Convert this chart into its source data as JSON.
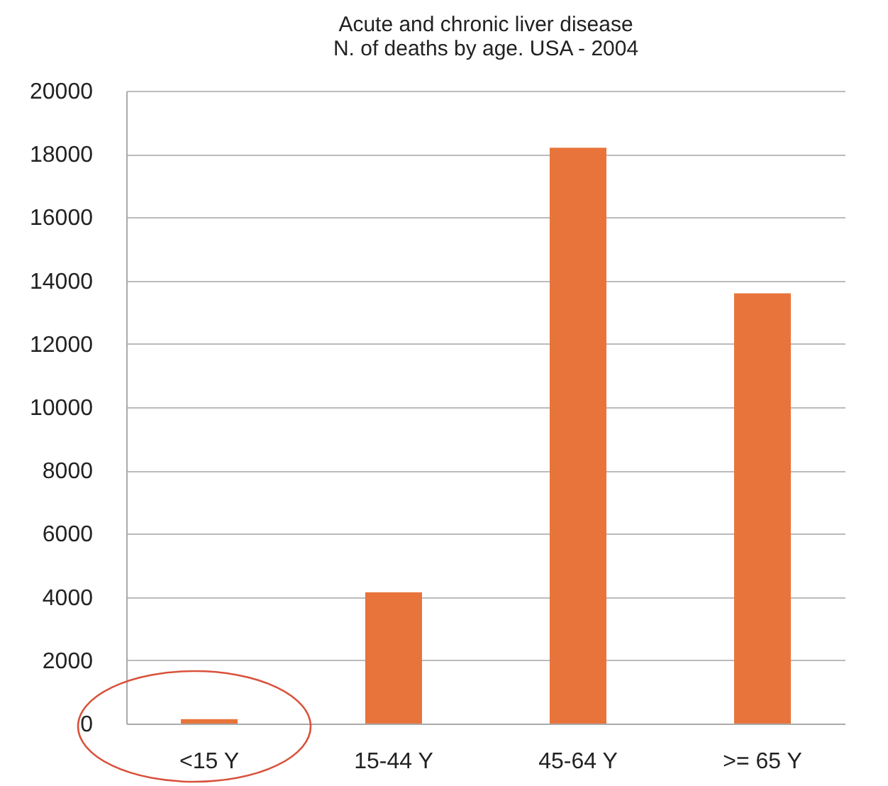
{
  "chart_data": {
    "type": "bar",
    "title": [
      "Acute and chronic liver disease",
      "N. of deaths by age. USA - 2004"
    ],
    "categories": [
      "<15 Y",
      "15-44 Y",
      "45-64 Y",
      ">= 65 Y"
    ],
    "values": [
      140,
      4150,
      18200,
      13600
    ],
    "color": "#e8743b",
    "ylim": [
      0,
      20000
    ],
    "yticks": [
      0,
      2000,
      4000,
      6000,
      8000,
      10000,
      12000,
      14000,
      16000,
      18000,
      20000
    ],
    "grid": "y"
  }
}
